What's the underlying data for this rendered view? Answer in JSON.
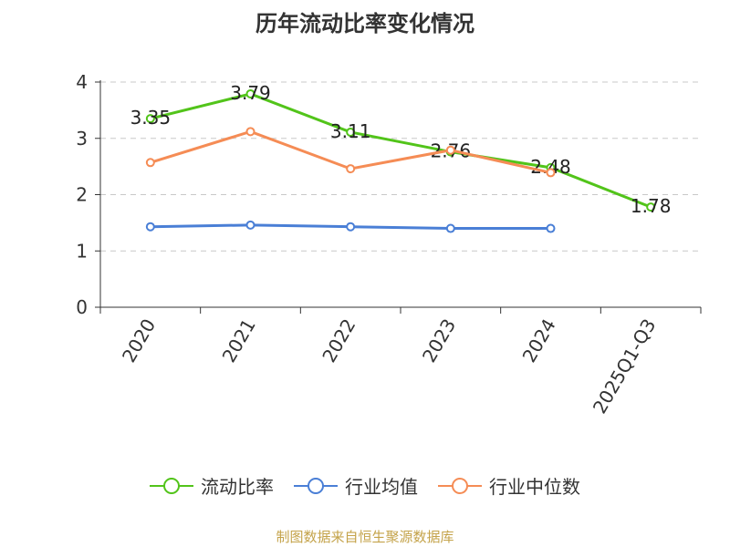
{
  "title": "历年流动比率变化情况",
  "source": "制图数据来自恒生聚源数据库",
  "chart_data": {
    "type": "line",
    "categories": [
      "2020",
      "2021",
      "2022",
      "2023",
      "2024",
      "2025Q1-Q3"
    ],
    "ylim": [
      0,
      4
    ],
    "yticks": [
      0,
      1,
      2,
      3,
      4
    ],
    "grid": true,
    "legend_position": "bottom",
    "series": [
      {
        "name": "流动比率",
        "color": "#52c41a",
        "values": [
          3.35,
          3.79,
          3.11,
          2.76,
          2.48,
          1.78
        ],
        "labels": [
          "3.35",
          "3.79",
          "3.11",
          "2.76",
          "2.48",
          "1.78"
        ]
      },
      {
        "name": "行业均值",
        "color": "#4a7fd6",
        "values": [
          1.43,
          1.46,
          1.43,
          1.4,
          1.4,
          null
        ]
      },
      {
        "name": "行业中位数",
        "color": "#f58c55",
        "values": [
          2.57,
          3.12,
          2.46,
          2.79,
          2.39,
          null
        ]
      }
    ]
  }
}
